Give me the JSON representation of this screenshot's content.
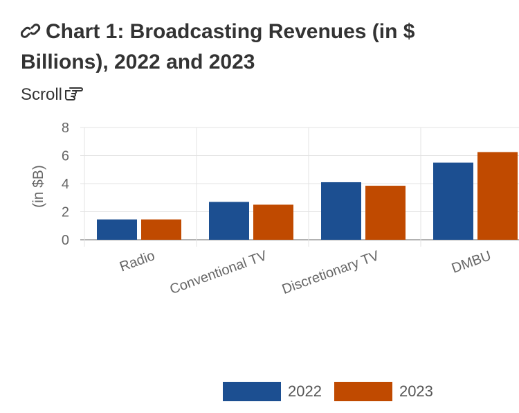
{
  "header": {
    "title": "Chart 1: Broadcasting Revenues (in $ Billions), 2022 and 2023",
    "scroll_label": "Scroll"
  },
  "icons": {
    "title_icon": "link-icon",
    "scroll_icon": "pointing-hand-icon"
  },
  "colors": {
    "series_2022": "#1c4f91",
    "series_2023": "#c04a00",
    "grid": "#e3e3e3",
    "axis_text": "#666666"
  },
  "chart_data": {
    "type": "bar",
    "title": "Chart 1: Broadcasting Revenues (in $ Billions), 2022 and 2023",
    "xlabel": "",
    "ylabel": "(in $B)",
    "categories": [
      "Radio",
      "Conventional TV",
      "Discretionary TV",
      "DMBU"
    ],
    "series": [
      {
        "name": "2022",
        "values": [
          1.45,
          2.7,
          4.1,
          5.5
        ]
      },
      {
        "name": "2023",
        "values": [
          1.45,
          2.5,
          3.85,
          6.25
        ]
      }
    ],
    "ylim": [
      0,
      8
    ],
    "yticks": [
      "0",
      "2",
      "4",
      "6",
      "8"
    ],
    "grid": true,
    "legend_position": "bottom"
  }
}
